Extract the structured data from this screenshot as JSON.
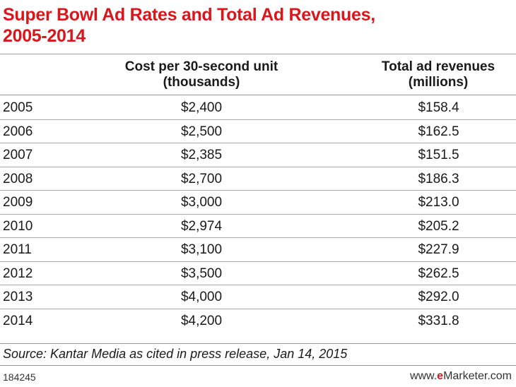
{
  "colors": {
    "title": "#d9161c",
    "text": "#1a1a1a",
    "rule": "#9a9a9a",
    "brand_e": "#d9161c"
  },
  "chart_data": {
    "type": "table",
    "title_line1": "Super Bowl Ad Rates and Total Ad Revenues,",
    "title_line2": "2005-2014",
    "columns": [
      {
        "line1": "",
        "line2": ""
      },
      {
        "line1": "Cost per 30-second unit",
        "line2": "(thousands)"
      },
      {
        "line1": "Total ad revenues",
        "line2": "(millions)"
      }
    ],
    "rows": [
      {
        "year": "2005",
        "cost": "$2,400",
        "revenue": "$158.4"
      },
      {
        "year": "2006",
        "cost": "$2,500",
        "revenue": "$162.5"
      },
      {
        "year": "2007",
        "cost": "$2,385",
        "revenue": "$151.5"
      },
      {
        "year": "2008",
        "cost": "$2,700",
        "revenue": "$186.3"
      },
      {
        "year": "2009",
        "cost": "$3,000",
        "revenue": "$213.0"
      },
      {
        "year": "2010",
        "cost": "$2,974",
        "revenue": "$205.2"
      },
      {
        "year": "2011",
        "cost": "$3,100",
        "revenue": "$227.9"
      },
      {
        "year": "2012",
        "cost": "$3,500",
        "revenue": "$262.5"
      },
      {
        "year": "2013",
        "cost": "$4,000",
        "revenue": "$292.0"
      },
      {
        "year": "2014",
        "cost": "$4,200",
        "revenue": "$331.8"
      }
    ],
    "source": "Source: Kantar Media as cited in press release, Jan 14, 2015"
  },
  "footer": {
    "chart_id": "184245",
    "brand_prefix": "www.",
    "brand_e": "e",
    "brand_suffix": "Marketer.com"
  }
}
